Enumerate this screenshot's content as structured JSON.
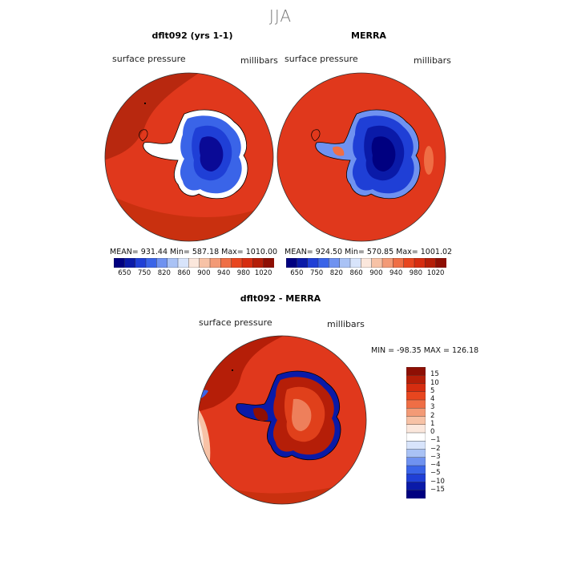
{
  "figure": {
    "season": "JJA",
    "colors": {
      "ocean_model": "#e0381c",
      "ocean_dark": "#b8280f",
      "land_low": "#0a0a96",
      "land_mid": "#1f3fd6",
      "land_edge": "#7ea0f0",
      "coast": "#000000"
    }
  },
  "panel_left": {
    "title": "dflt092 (yrs 1-1)",
    "variable": "surface pressure",
    "units": "millibars",
    "stats": "MEAN= 931.44   Min= 587.18   Max= 1010.00"
  },
  "panel_right": {
    "title": "MERRA",
    "variable": "surface pressure",
    "units": "millibars",
    "stats": "MEAN= 924.50   Min= 570.85   Max= 1001.02"
  },
  "colorbar_top": {
    "colors": [
      "#000080",
      "#0a1aa8",
      "#1f3fd6",
      "#3a64e8",
      "#6f92f0",
      "#a9c2f5",
      "#d8e4fb",
      "#fbe7dc",
      "#f7c2a6",
      "#f39a76",
      "#ef6e45",
      "#e8461f",
      "#d62d10",
      "#b51e08",
      "#8e0f04"
    ],
    "tick_labels": [
      "650",
      "750",
      "820",
      "860",
      "900",
      "940",
      "980",
      "1020"
    ]
  },
  "panel_diff": {
    "title": "dflt092 - MERRA",
    "variable": "surface pressure",
    "units": "millibars",
    "stats": "MIN = -98.35  MAX = 126.18"
  },
  "colorbar_diff": {
    "colors": [
      "#8e0f04",
      "#b51e08",
      "#d62d10",
      "#e8461f",
      "#ef6e45",
      "#f39a76",
      "#f7c2a6",
      "#fbe7dc",
      "#ffffff",
      "#d8e4fb",
      "#a9c2f5",
      "#6f92f0",
      "#3a64e8",
      "#1f3fd6",
      "#0a1aa8",
      "#000080"
    ],
    "tick_labels": [
      "15",
      "10",
      "5",
      "4",
      "3",
      "2",
      "1",
      "0",
      "−1",
      "−2",
      "−3",
      "−4",
      "−5",
      "−10",
      "−15"
    ]
  }
}
